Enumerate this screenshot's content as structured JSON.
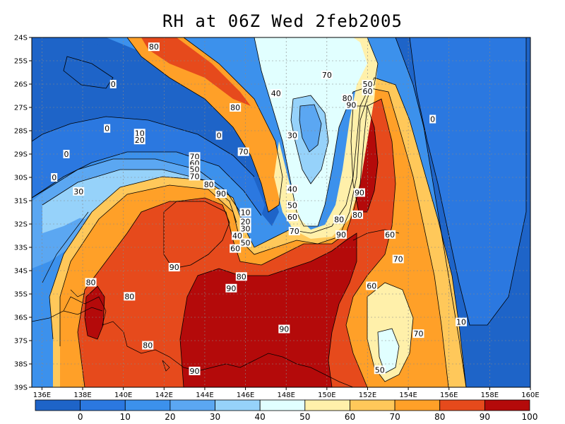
{
  "title": "RH at 06Z Wed 2feb2005",
  "map": {
    "lon_range": [
      135.5,
      160
    ],
    "lat_range": [
      24,
      39
    ],
    "x_ticks": [
      "136E",
      "138E",
      "140E",
      "142E",
      "144E",
      "146E",
      "148E",
      "150E",
      "152E",
      "154E",
      "156E",
      "158E",
      "160E"
    ],
    "y_ticks": [
      "24S",
      "25S",
      "26S",
      "27S",
      "28S",
      "29S",
      "30S",
      "31S",
      "32S",
      "33S",
      "34S",
      "35S",
      "36S",
      "37S",
      "38S",
      "39S"
    ],
    "contour_levels": [
      0,
      10,
      20,
      30,
      40,
      50,
      60,
      70,
      80,
      90,
      100
    ],
    "contour_labels": [
      {
        "text": "80",
        "lon": 141.5,
        "lat": 24.4
      },
      {
        "text": "0",
        "lon": 139.5,
        "lat": 26.0
      },
      {
        "text": "80",
        "lon": 145.5,
        "lat": 27.0
      },
      {
        "text": "40",
        "lon": 147.5,
        "lat": 26.4
      },
      {
        "text": "70",
        "lon": 150.0,
        "lat": 25.6
      },
      {
        "text": "50",
        "lon": 152.0,
        "lat": 26.0
      },
      {
        "text": "60",
        "lon": 152.0,
        "lat": 26.3
      },
      {
        "text": "80",
        "lon": 151.0,
        "lat": 26.6
      },
      {
        "text": "90",
        "lon": 151.2,
        "lat": 26.9
      },
      {
        "text": "0",
        "lon": 155.2,
        "lat": 27.5
      },
      {
        "text": "0",
        "lon": 139.2,
        "lat": 27.9
      },
      {
        "text": "10",
        "lon": 140.8,
        "lat": 28.1
      },
      {
        "text": "20",
        "lon": 140.8,
        "lat": 28.4
      },
      {
        "text": "0",
        "lon": 144.7,
        "lat": 28.2
      },
      {
        "text": "0",
        "lon": 137.2,
        "lat": 29.0
      },
      {
        "text": "70",
        "lon": 145.9,
        "lat": 28.9
      },
      {
        "text": "30",
        "lon": 148.3,
        "lat": 28.2
      },
      {
        "text": "70",
        "lon": 143.5,
        "lat": 29.1
      },
      {
        "text": "60",
        "lon": 143.5,
        "lat": 29.4
      },
      {
        "text": "50",
        "lon": 143.5,
        "lat": 29.65
      },
      {
        "text": "0",
        "lon": 136.6,
        "lat": 30.0
      },
      {
        "text": "70",
        "lon": 143.5,
        "lat": 29.95
      },
      {
        "text": "80",
        "lon": 144.2,
        "lat": 30.3
      },
      {
        "text": "40",
        "lon": 148.3,
        "lat": 30.5
      },
      {
        "text": "30",
        "lon": 137.8,
        "lat": 30.6
      },
      {
        "text": "90",
        "lon": 144.8,
        "lat": 30.7
      },
      {
        "text": "90",
        "lon": 151.6,
        "lat": 30.65
      },
      {
        "text": "50",
        "lon": 148.3,
        "lat": 31.2
      },
      {
        "text": "10",
        "lon": 146.0,
        "lat": 31.5
      },
      {
        "text": "60",
        "lon": 148.3,
        "lat": 31.7
      },
      {
        "text": "80",
        "lon": 151.5,
        "lat": 31.6
      },
      {
        "text": "80",
        "lon": 150.6,
        "lat": 31.8
      },
      {
        "text": "20",
        "lon": 146.0,
        "lat": 31.9
      },
      {
        "text": "70",
        "lon": 148.4,
        "lat": 32.3
      },
      {
        "text": "30",
        "lon": 146.0,
        "lat": 32.2
      },
      {
        "text": "90",
        "lon": 150.7,
        "lat": 32.45
      },
      {
        "text": "60",
        "lon": 153.1,
        "lat": 32.45
      },
      {
        "text": "40",
        "lon": 145.6,
        "lat": 32.5
      },
      {
        "text": "50",
        "lon": 146.0,
        "lat": 32.8
      },
      {
        "text": "60",
        "lon": 145.5,
        "lat": 33.05
      },
      {
        "text": "70",
        "lon": 153.5,
        "lat": 33.5
      },
      {
        "text": "90",
        "lon": 142.5,
        "lat": 33.85
      },
      {
        "text": "80",
        "lon": 145.8,
        "lat": 34.25
      },
      {
        "text": "80",
        "lon": 138.4,
        "lat": 34.5
      },
      {
        "text": "90",
        "lon": 145.3,
        "lat": 34.75
      },
      {
        "text": "60",
        "lon": 152.2,
        "lat": 34.65
      },
      {
        "text": "80",
        "lon": 140.3,
        "lat": 35.1
      },
      {
        "text": "10",
        "lon": 156.6,
        "lat": 36.2
      },
      {
        "text": "90",
        "lon": 147.9,
        "lat": 36.5
      },
      {
        "text": "70",
        "lon": 154.5,
        "lat": 36.7
      },
      {
        "text": "80",
        "lon": 141.2,
        "lat": 37.2
      },
      {
        "text": "90",
        "lon": 143.5,
        "lat": 38.3
      },
      {
        "text": "50",
        "lon": 152.6,
        "lat": 38.25
      }
    ]
  },
  "colorbar": {
    "labels": [
      "0",
      "10",
      "20",
      "30",
      "40",
      "50",
      "60",
      "70",
      "80",
      "90",
      "100"
    ],
    "colors": [
      "#1e64c8",
      "#2b78e0",
      "#3c91ec",
      "#5ba7f2",
      "#96d2fa",
      "#e1ffff",
      "#fff0aa",
      "#ffc85a",
      "#ffa028",
      "#e64a1c",
      "#b40a0a"
    ]
  }
}
